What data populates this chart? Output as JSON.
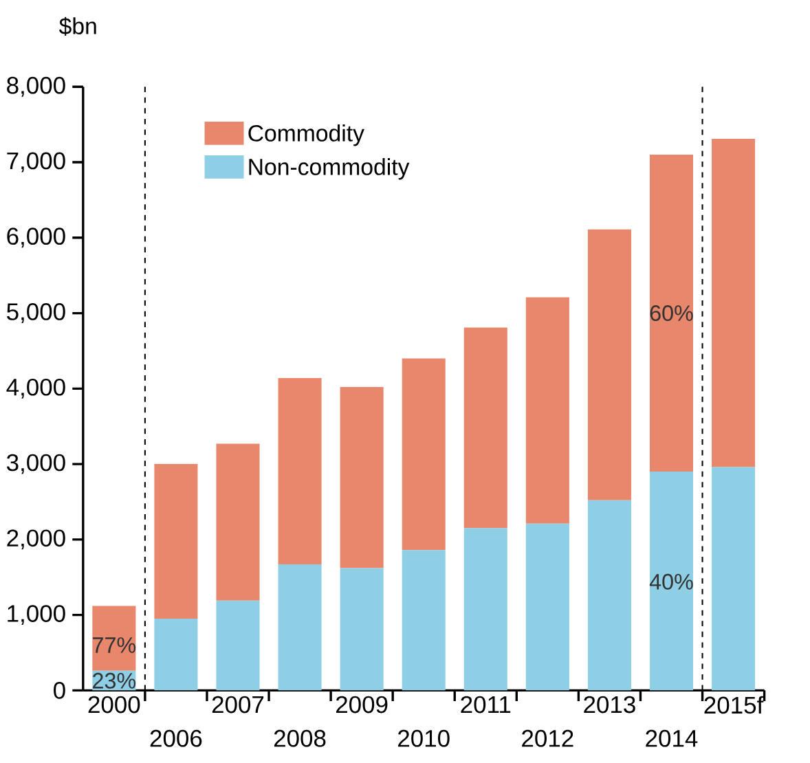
{
  "chart_data": {
    "type": "bar",
    "stacked": true,
    "ylabel": "$bn",
    "categories": [
      "2000",
      "2006",
      "2007",
      "2008",
      "2009",
      "2010",
      "2011",
      "2012",
      "2013",
      "2014",
      "2015f"
    ],
    "series": [
      {
        "name": "Non-commodity",
        "color": "#8ecfe6",
        "values": [
          260,
          950,
          1190,
          1670,
          1620,
          1860,
          2150,
          2210,
          2520,
          2900,
          2960
        ]
      },
      {
        "name": "Commodity",
        "color": "#e8876c",
        "values": [
          860,
          2050,
          2080,
          2470,
          2400,
          2540,
          2660,
          3000,
          3590,
          4200,
          4350
        ]
      }
    ],
    "ylim": [
      0,
      8000
    ],
    "yticks": [
      {
        "value": 0,
        "label": "0"
      },
      {
        "value": 1000,
        "label": "1,000"
      },
      {
        "value": 2000,
        "label": "2,000"
      },
      {
        "value": 3000,
        "label": "3,000"
      },
      {
        "value": 4000,
        "label": "4,000"
      },
      {
        "value": 5000,
        "label": "5,000"
      },
      {
        "value": 6000,
        "label": "6,000"
      },
      {
        "value": 7000,
        "label": "7,000"
      },
      {
        "value": 8000,
        "label": "8,000"
      }
    ],
    "annotations": [
      "77%",
      "23%",
      "60%",
      "40%"
    ],
    "legend": "top left",
    "grid": false
  }
}
